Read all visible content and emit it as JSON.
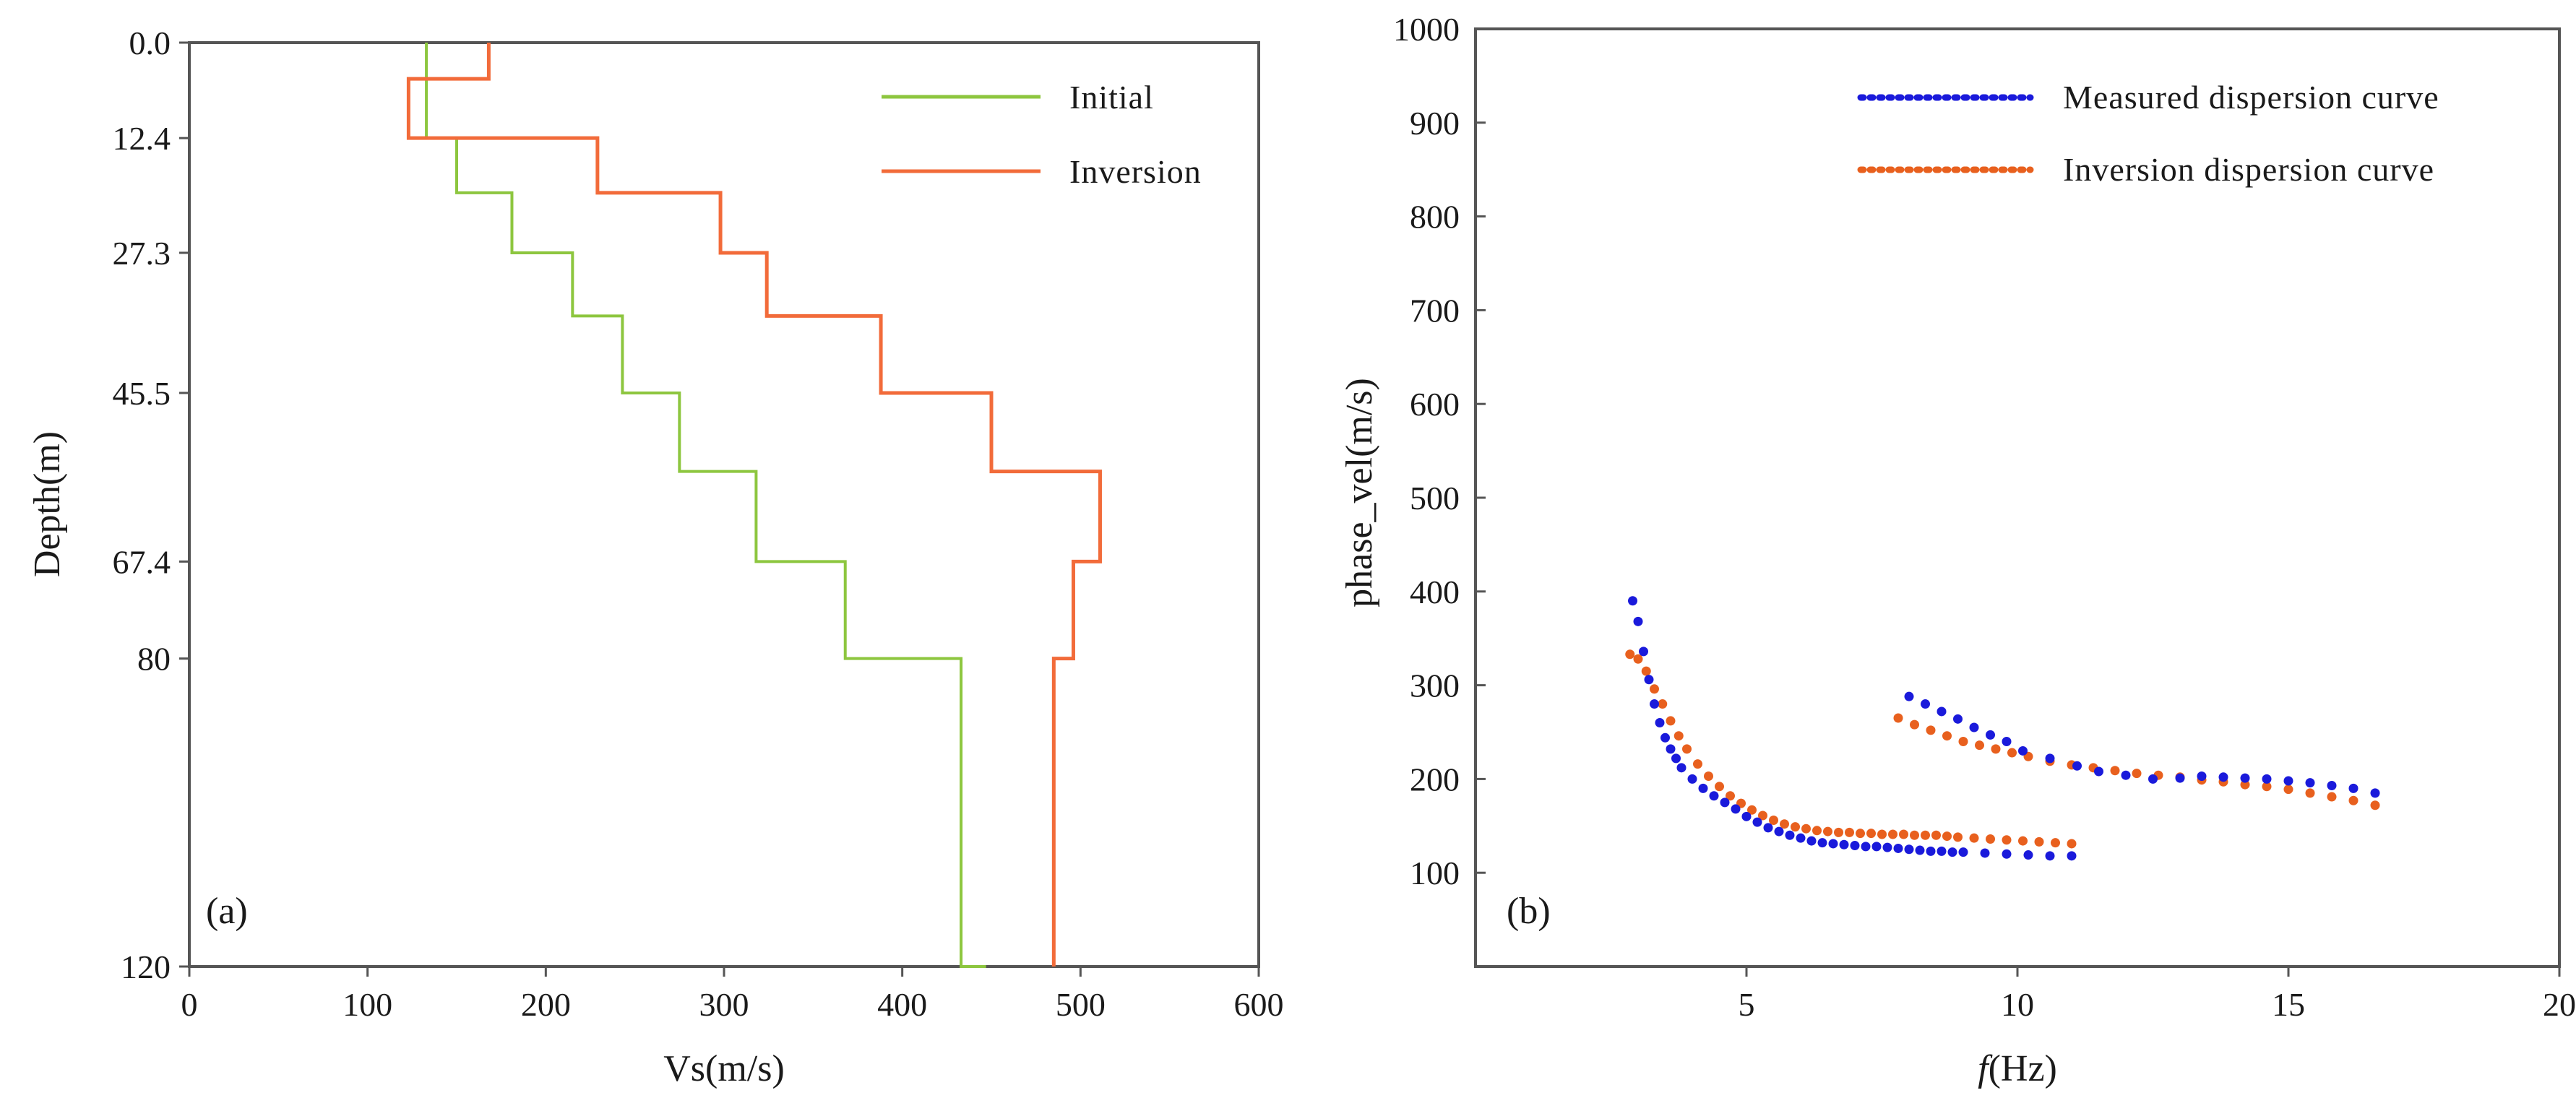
{
  "colors": {
    "initial": "#8dc63f",
    "inversion": "#f26b3a",
    "measured": "#1a1adb",
    "inversion_dots": "#e8601e",
    "axis": "#555555"
  },
  "chart_data": [
    {
      "type": "line",
      "panel": "(a)",
      "xlabel": "Vs(m/s)",
      "ylabel": "Depth(m)",
      "xlim": [
        0,
        600
      ],
      "ylim": [
        0,
        120
      ],
      "y_inverted": true,
      "x_ticks": [
        "0",
        "100",
        "200",
        "300",
        "400",
        "500",
        "600"
      ],
      "y_ticks": [
        "0.0",
        "12.4",
        "27.3",
        "45.5",
        "67.4",
        "80",
        "120"
      ],
      "legend_position": "top-right",
      "series": [
        {
          "name": "Initial",
          "step": "vertical-then-horizontal",
          "vs": [
            133,
            150,
            181,
            215,
            243,
            275,
            318,
            368,
            433,
            447,
            447
          ],
          "depth": [
            0,
            12.4,
            19.5,
            27.3,
            35.5,
            45.5,
            55.7,
            67.4,
            80,
            120,
            120
          ]
        },
        {
          "name": "Inversion",
          "vs": [
            168,
            168,
            123,
            123,
            229,
            229,
            298,
            298,
            324,
            324,
            388,
            388,
            450,
            450,
            511,
            511,
            496,
            496,
            485,
            485
          ],
          "depth": [
            0,
            4.7,
            4.7,
            12.4,
            12.4,
            19.5,
            19.5,
            27.3,
            27.3,
            35.5,
            35.5,
            45.5,
            45.5,
            55.7,
            55.7,
            67.4,
            67.4,
            80,
            80,
            120
          ]
        }
      ]
    },
    {
      "type": "scatter",
      "panel": "(b)",
      "xlabel_italic": "f",
      "xlabel_rest": "(Hz)",
      "ylabel": "phase_vel(m/s)",
      "xlim": [
        0,
        20
      ],
      "ylim": [
        0,
        1000
      ],
      "x_ticks": [
        "5",
        "10",
        "15",
        "20"
      ],
      "y_ticks": [
        "100",
        "200",
        "300",
        "400",
        "500",
        "600",
        "700",
        "800",
        "900",
        "1000"
      ],
      "legend_position": "top-right",
      "series": [
        {
          "name": "Measured dispersion curve",
          "points": [
            [
              2.9,
              390
            ],
            [
              3.0,
              368
            ],
            [
              3.1,
              336
            ],
            [
              3.2,
              306
            ],
            [
              3.3,
              280
            ],
            [
              3.4,
              260
            ],
            [
              3.5,
              244
            ],
            [
              3.6,
              232
            ],
            [
              3.7,
              222
            ],
            [
              3.8,
              212
            ],
            [
              4.0,
              200
            ],
            [
              4.2,
              190
            ],
            [
              4.4,
              182
            ],
            [
              4.6,
              175
            ],
            [
              4.8,
              168
            ],
            [
              5.0,
              160
            ],
            [
              5.2,
              154
            ],
            [
              5.4,
              148
            ],
            [
              5.6,
              144
            ],
            [
              5.8,
              140
            ],
            [
              6.0,
              137
            ],
            [
              6.2,
              134
            ],
            [
              6.4,
              132
            ],
            [
              6.6,
              131
            ],
            [
              6.8,
              130
            ],
            [
              7.0,
              129
            ],
            [
              7.2,
              128
            ],
            [
              7.4,
              128
            ],
            [
              7.6,
              127
            ],
            [
              7.8,
              126
            ],
            [
              8.0,
              125
            ],
            [
              8.2,
              124
            ],
            [
              8.4,
              123
            ],
            [
              8.6,
              123
            ],
            [
              8.8,
              122
            ],
            [
              9.0,
              122
            ],
            [
              9.4,
              121
            ],
            [
              9.8,
              120
            ],
            [
              10.2,
              119
            ],
            [
              10.6,
              118
            ],
            [
              11.0,
              118
            ],
            [
              8.0,
              288
            ],
            [
              8.3,
              280
            ],
            [
              8.6,
              272
            ],
            [
              8.9,
              264
            ],
            [
              9.2,
              255
            ],
            [
              9.5,
              247
            ],
            [
              9.8,
              240
            ],
            [
              10.1,
              230
            ],
            [
              10.6,
              222
            ],
            [
              11.1,
              214
            ],
            [
              11.5,
              208
            ],
            [
              12.0,
              204
            ],
            [
              12.5,
              200
            ],
            [
              13.0,
              201
            ],
            [
              13.4,
              203
            ],
            [
              13.8,
              202
            ],
            [
              14.2,
              201
            ],
            [
              14.6,
              200
            ],
            [
              15.0,
              198
            ],
            [
              15.4,
              196
            ],
            [
              15.8,
              193
            ],
            [
              16.2,
              190
            ],
            [
              16.6,
              185
            ]
          ]
        },
        {
          "name": "Inversion dispersion curve",
          "points": [
            [
              2.85,
              333
            ],
            [
              3.0,
              328
            ],
            [
              3.15,
              315
            ],
            [
              3.3,
              296
            ],
            [
              3.45,
              280
            ],
            [
              3.6,
              262
            ],
            [
              3.75,
              246
            ],
            [
              3.9,
              232
            ],
            [
              4.1,
              216
            ],
            [
              4.3,
              203
            ],
            [
              4.5,
              192
            ],
            [
              4.7,
              182
            ],
            [
              4.9,
              174
            ],
            [
              5.1,
              167
            ],
            [
              5.3,
              161
            ],
            [
              5.5,
              156
            ],
            [
              5.7,
              152
            ],
            [
              5.9,
              149
            ],
            [
              6.1,
              147
            ],
            [
              6.3,
              145
            ],
            [
              6.5,
              144
            ],
            [
              6.7,
              143
            ],
            [
              6.9,
              143
            ],
            [
              7.1,
              142
            ],
            [
              7.3,
              142
            ],
            [
              7.5,
              141
            ],
            [
              7.7,
              141
            ],
            [
              7.9,
              141
            ],
            [
              8.1,
              140
            ],
            [
              8.3,
              140
            ],
            [
              8.5,
              140
            ],
            [
              8.7,
              139
            ],
            [
              8.9,
              138
            ],
            [
              9.2,
              137
            ],
            [
              9.5,
              136
            ],
            [
              9.8,
              135
            ],
            [
              10.1,
              134
            ],
            [
              10.4,
              133
            ],
            [
              10.7,
              132
            ],
            [
              11.0,
              131
            ],
            [
              7.8,
              265
            ],
            [
              8.1,
              258
            ],
            [
              8.4,
              252
            ],
            [
              8.7,
              246
            ],
            [
              9.0,
              240
            ],
            [
              9.3,
              236
            ],
            [
              9.6,
              232
            ],
            [
              9.9,
              228
            ],
            [
              10.2,
              224
            ],
            [
              10.6,
              219
            ],
            [
              11.0,
              215
            ],
            [
              11.4,
              212
            ],
            [
              11.8,
              209
            ],
            [
              12.2,
              206
            ],
            [
              12.6,
              204
            ],
            [
              13.0,
              202
            ],
            [
              13.4,
              199
            ],
            [
              13.8,
              197
            ],
            [
              14.2,
              194
            ],
            [
              14.6,
              192
            ],
            [
              15.0,
              189
            ],
            [
              15.4,
              185
            ],
            [
              15.8,
              181
            ],
            [
              16.2,
              177
            ],
            [
              16.6,
              172
            ]
          ]
        }
      ]
    }
  ]
}
